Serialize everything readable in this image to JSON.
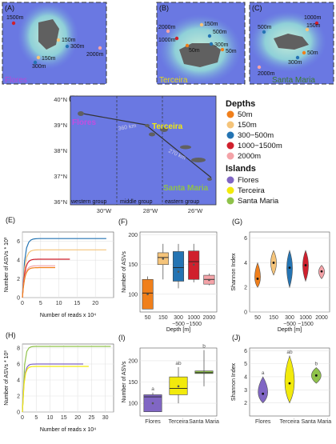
{
  "maps": {
    "A": {
      "letter": "(A)",
      "island": "Flores",
      "labels": [
        "1500m",
        "150m",
        "300m",
        "2000m",
        "150m",
        "300m"
      ]
    },
    "B": {
      "letter": "(B)",
      "island": "Terceira",
      "labels": [
        "150m",
        "2000m",
        "1000m",
        "500m",
        "50m",
        "300m",
        "50m"
      ]
    },
    "C": {
      "letter": "(C)",
      "island": "Santa Maria",
      "labels": [
        "1000m",
        "150m",
        "500m",
        "50m",
        "300m",
        "2000m"
      ]
    },
    "D": {
      "letter": "(D)",
      "islands": [
        "Flores",
        "Terceira",
        "Santa Maria"
      ],
      "distances": [
        "360 km",
        "270 km"
      ],
      "groups": [
        "western group",
        "middle group",
        "eastern group"
      ],
      "lat_ticks": [
        "40°N",
        "39°N",
        "38°N",
        "37°N",
        "36°N"
      ],
      "lon_ticks": [
        "30°W",
        "28°W",
        "26°W"
      ]
    }
  },
  "legend": {
    "depths_title": "Depths",
    "depths": [
      {
        "label": "50m",
        "color": "#f07f1b"
      },
      {
        "label": "150m",
        "color": "#f5c47a"
      },
      {
        "label": "300−500m",
        "color": "#2474b3"
      },
      {
        "label": "1000−1500m",
        "color": "#d0202d"
      },
      {
        "label": "2000m",
        "color": "#f4a3a8"
      }
    ],
    "islands_title": "Islands",
    "islands": [
      {
        "label": "Flores",
        "color": "#8066c4"
      },
      {
        "label": "Terceira",
        "color": "#f2ea0c"
      },
      {
        "label": "Santa Maria",
        "color": "#8fc24a"
      }
    ]
  },
  "panel_letters": {
    "E": "(E)",
    "F": "(F)",
    "G": "(G)",
    "H": "(H)",
    "I": "(I)",
    "J": "(J)"
  },
  "chart_data": [
    {
      "panel": "E",
      "type": "line",
      "xlabel": "Number of reads x 10⁴",
      "ylabel": "Number of ASVs * 10³",
      "xlim": [
        0,
        25
      ],
      "ylim": [
        0,
        7
      ],
      "xticks": [
        0,
        5,
        10,
        15,
        20
      ],
      "yticks": [
        0,
        2,
        4,
        6
      ],
      "series": [
        {
          "color": "#2474b3",
          "x_end": 23,
          "plateau": 6.3
        },
        {
          "color": "#f5c47a",
          "x_end": 23,
          "plateau": 5.1
        },
        {
          "color": "#d0202d",
          "x_end": 13,
          "plateau": 4.1
        },
        {
          "color": "#f4a3a8",
          "x_end": 9,
          "plateau": 3.4
        },
        {
          "color": "#f07f1b",
          "x_end": 9,
          "plateau": 3.2
        }
      ]
    },
    {
      "panel": "F",
      "type": "box",
      "xlabel": "Depth [m]",
      "ylabel": "Number of ASVs",
      "categories": [
        "50",
        "150",
        "300\n−500",
        "1000\n−1500",
        "2000"
      ],
      "ylim": [
        70,
        205
      ],
      "yticks": [
        100,
        150,
        200
      ],
      "boxes": [
        {
          "color": "#f07f1b",
          "min": 75,
          "q1": 75,
          "median": 102,
          "q3": 125,
          "max": 130,
          "mean": 100
        },
        {
          "color": "#f5c47a",
          "min": 125,
          "q1": 150,
          "median": 162,
          "q3": 170,
          "max": 185,
          "mean": 160
        },
        {
          "color": "#2474b3",
          "min": 110,
          "q1": 122,
          "median": 145,
          "q3": 172,
          "max": 185,
          "mean": 138
        },
        {
          "color": "#d0202d",
          "min": 120,
          "q1": 125,
          "median": 155,
          "q3": 173,
          "max": 185,
          "mean": 150
        },
        {
          "color": "#f4a3a8",
          "min": 115,
          "q1": 117,
          "median": 125,
          "q3": 132,
          "max": 135,
          "mean": 124
        }
      ]
    },
    {
      "panel": "G",
      "type": "violin",
      "xlabel": "Depth [m]",
      "ylabel": "Shannon Index",
      "categories": [
        "50",
        "150",
        "300\n−500",
        "1000\n−1500",
        "2000"
      ],
      "ylim": [
        0,
        6.5
      ],
      "yticks": [
        0,
        2,
        4,
        6
      ],
      "violins": [
        {
          "color": "#f07f1b",
          "min": 2.0,
          "max": 4.0,
          "mean": 2.7
        },
        {
          "color": "#f5c47a",
          "min": 3.0,
          "max": 5.0,
          "mean": 4.0
        },
        {
          "color": "#2474b3",
          "min": 2.0,
          "max": 5.0,
          "mean": 3.6
        },
        {
          "color": "#d0202d",
          "min": 2.5,
          "max": 5.0,
          "mean": 3.8
        },
        {
          "color": "#f4a3a8",
          "min": 2.7,
          "max": 3.8,
          "mean": 3.3
        }
      ]
    },
    {
      "panel": "H",
      "type": "line",
      "xlabel": "Number of reads x 10⁴",
      "ylabel": "Number of ASVs * 10³",
      "xlim": [
        0,
        33
      ],
      "ylim": [
        0,
        8.5
      ],
      "xticks": [
        0,
        5,
        10,
        15,
        20,
        25,
        30
      ],
      "yticks": [
        0,
        2,
        4,
        6,
        8
      ],
      "series": [
        {
          "color": "#8fc24a",
          "x_end": 32,
          "plateau": 8.2
        },
        {
          "color": "#8066c4",
          "x_end": 22,
          "plateau": 6.0
        },
        {
          "color": "#f2ea0c",
          "x_end": 24,
          "plateau": 5.7
        }
      ]
    },
    {
      "panel": "I",
      "type": "box",
      "xlabel": "",
      "ylabel": "Number of ASVs",
      "categories": [
        "Flores",
        "Terceira",
        "Santa Maria"
      ],
      "ylim": [
        70,
        230
      ],
      "yticks": [
        100,
        150,
        200
      ],
      "boxes": [
        {
          "color": "#8066c4",
          "min": 80,
          "q1": 80,
          "median": 115,
          "q3": 120,
          "max": 125,
          "mean": 100,
          "sig": "a"
        },
        {
          "color": "#f2ea0c",
          "min": 100,
          "q1": 120,
          "median": 135,
          "q3": 162,
          "max": 185,
          "mean": 140,
          "sig": "ab"
        },
        {
          "color": "#8fc24a",
          "min": 140,
          "q1": 170,
          "median": 172,
          "q3": 176,
          "max": 225,
          "mean": 172,
          "sig": "b"
        }
      ]
    },
    {
      "panel": "J",
      "type": "violin",
      "xlabel": "",
      "ylabel": "Shannon Index",
      "categories": [
        "Flores",
        "Terceira",
        "Santa Maria"
      ],
      "ylim": [
        1,
        6.2
      ],
      "yticks": [
        2,
        3,
        4,
        5,
        6
      ],
      "violins": [
        {
          "color": "#8066c4",
          "min": 2.0,
          "max": 4.0,
          "mean": 2.7,
          "sig": "a"
        },
        {
          "color": "#f2ea0c",
          "min": 2.0,
          "max": 5.6,
          "mean": 3.5,
          "sig": "ab"
        },
        {
          "color": "#8fc24a",
          "min": 3.5,
          "max": 4.7,
          "mean": 4.1,
          "sig": "b"
        }
      ]
    }
  ]
}
